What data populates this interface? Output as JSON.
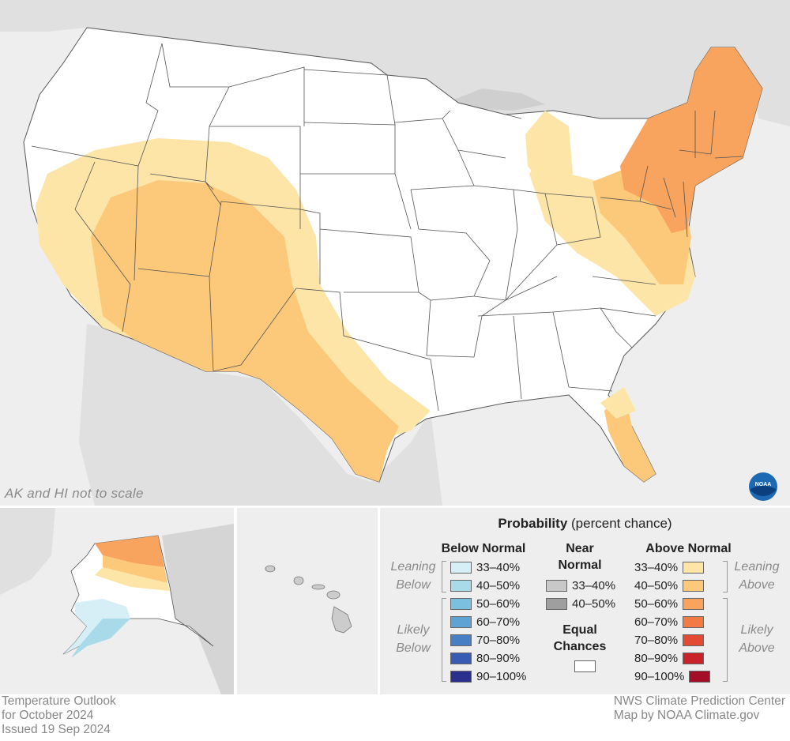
{
  "map": {
    "scale_note": "AK and HI not to scale",
    "logo_text": "NOAA"
  },
  "legend": {
    "title_bold": "Probability",
    "title_rest": " (percent chance)",
    "below": {
      "heading": "Below Normal",
      "leaning": [
        "Leaning",
        "Below"
      ],
      "likely": [
        "Likely",
        "Below"
      ],
      "rows": [
        {
          "label": "33–40%",
          "color": "#d6eef6"
        },
        {
          "label": "40–50%",
          "color": "#a9daea"
        },
        {
          "label": "50–60%",
          "color": "#7cc0e0"
        },
        {
          "label": "60–70%",
          "color": "#5fa3d4"
        },
        {
          "label": "70–80%",
          "color": "#477fc4"
        },
        {
          "label": "80–90%",
          "color": "#3a5bb4"
        },
        {
          "label": "90–100%",
          "color": "#2b2f8e"
        }
      ]
    },
    "near": {
      "heading_line1": "Near",
      "heading_line2": "Normal",
      "rows": [
        {
          "label": "33–40%",
          "color": "#c8c8c8"
        },
        {
          "label": "40–50%",
          "color": "#9f9f9f"
        }
      ],
      "equal_line1": "Equal",
      "equal_line2": "Chances",
      "equal_color": "#ffffff"
    },
    "above": {
      "heading": "Above Normal",
      "leaning": [
        "Leaning",
        "Above"
      ],
      "likely": [
        "Likely",
        "Above"
      ],
      "rows": [
        {
          "label": "33–40%",
          "color": "#fde5a8"
        },
        {
          "label": "40–50%",
          "color": "#fcc87a"
        },
        {
          "label": "50–60%",
          "color": "#f8a35e"
        },
        {
          "label": "60–70%",
          "color": "#f27a45"
        },
        {
          "label": "70–80%",
          "color": "#e24a33"
        },
        {
          "label": "80–90%",
          "color": "#c92329"
        },
        {
          "label": "90–100%",
          "color": "#a50e27"
        }
      ]
    }
  },
  "footer": {
    "left": [
      "Temperature Outlook",
      "for October 2024",
      "Issued 19 Sep 2024"
    ],
    "right": [
      "NWS Climate Prediction Center",
      "Map by NOAA Climate.gov"
    ]
  }
}
